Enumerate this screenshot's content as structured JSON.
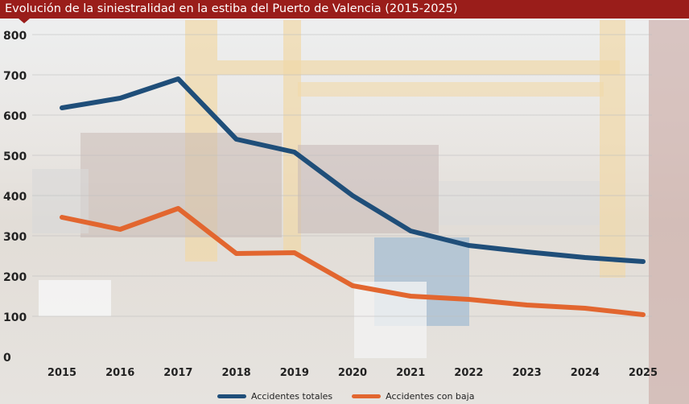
{
  "chart_data": {
    "type": "line",
    "title": "Evolución de la siniestralidad en la estiba del Puerto de Valencia (2015-2025)",
    "xlabel": "",
    "ylabel": "",
    "categories": [
      "2015",
      "2016",
      "2017",
      "2018",
      "2019",
      "2020",
      "2021",
      "2022",
      "2023",
      "2024",
      "2025"
    ],
    "ylim": [
      0,
      800
    ],
    "yticks": [
      "0",
      "100",
      "200",
      "300",
      "400",
      "500",
      "600",
      "700",
      "800"
    ],
    "grid": true,
    "legend": "bottom",
    "series": [
      {
        "name": "Accidentes totales",
        "color": "#1f4e79",
        "values": [
          618,
          642,
          690,
          540,
          508,
          400,
          312,
          276,
          260,
          246,
          236
        ]
      },
      {
        "name": "Accidentes con baja",
        "color": "#e2662f",
        "values": [
          346,
          316,
          368,
          256,
          258,
          176,
          150,
          142,
          128,
          120,
          104
        ]
      }
    ]
  }
}
